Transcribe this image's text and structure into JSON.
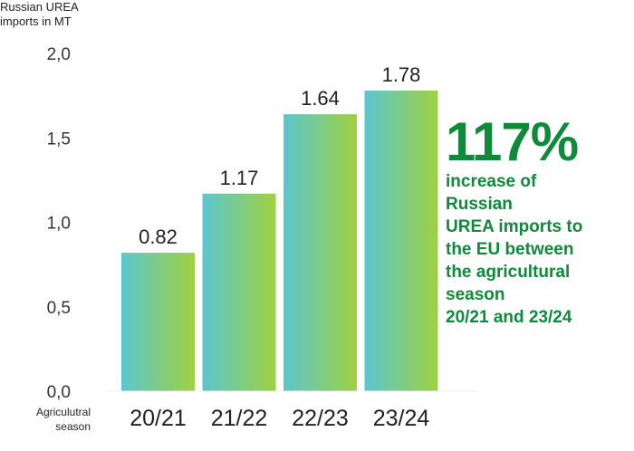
{
  "chart_data": {
    "type": "bar",
    "ylabel": [
      "Russian UREA",
      "imports in MT"
    ],
    "xlabel": [
      "Agriculutral",
      "season"
    ],
    "categories": [
      "20/21",
      "21/22",
      "22/23",
      "23/24"
    ],
    "values": [
      0.82,
      1.17,
      1.64,
      1.78
    ],
    "value_labels": [
      "0.82",
      "1.17",
      "1.64",
      "1.78"
    ],
    "yticks": [
      "0,0",
      "0,5",
      "1,0",
      "1,5",
      "2,0"
    ],
    "ylim": [
      0,
      2
    ],
    "grid": false,
    "bar_gradient": [
      "#5bc6cf",
      "#9fd13f"
    ]
  },
  "annotation": {
    "big_number": "117%",
    "text_lines": [
      "increase of",
      "Russian",
      "UREA imports to",
      "the EU between",
      "the agricultural",
      "season",
      "20/21 and 23/24"
    ],
    "color": "#0f8a3a"
  }
}
